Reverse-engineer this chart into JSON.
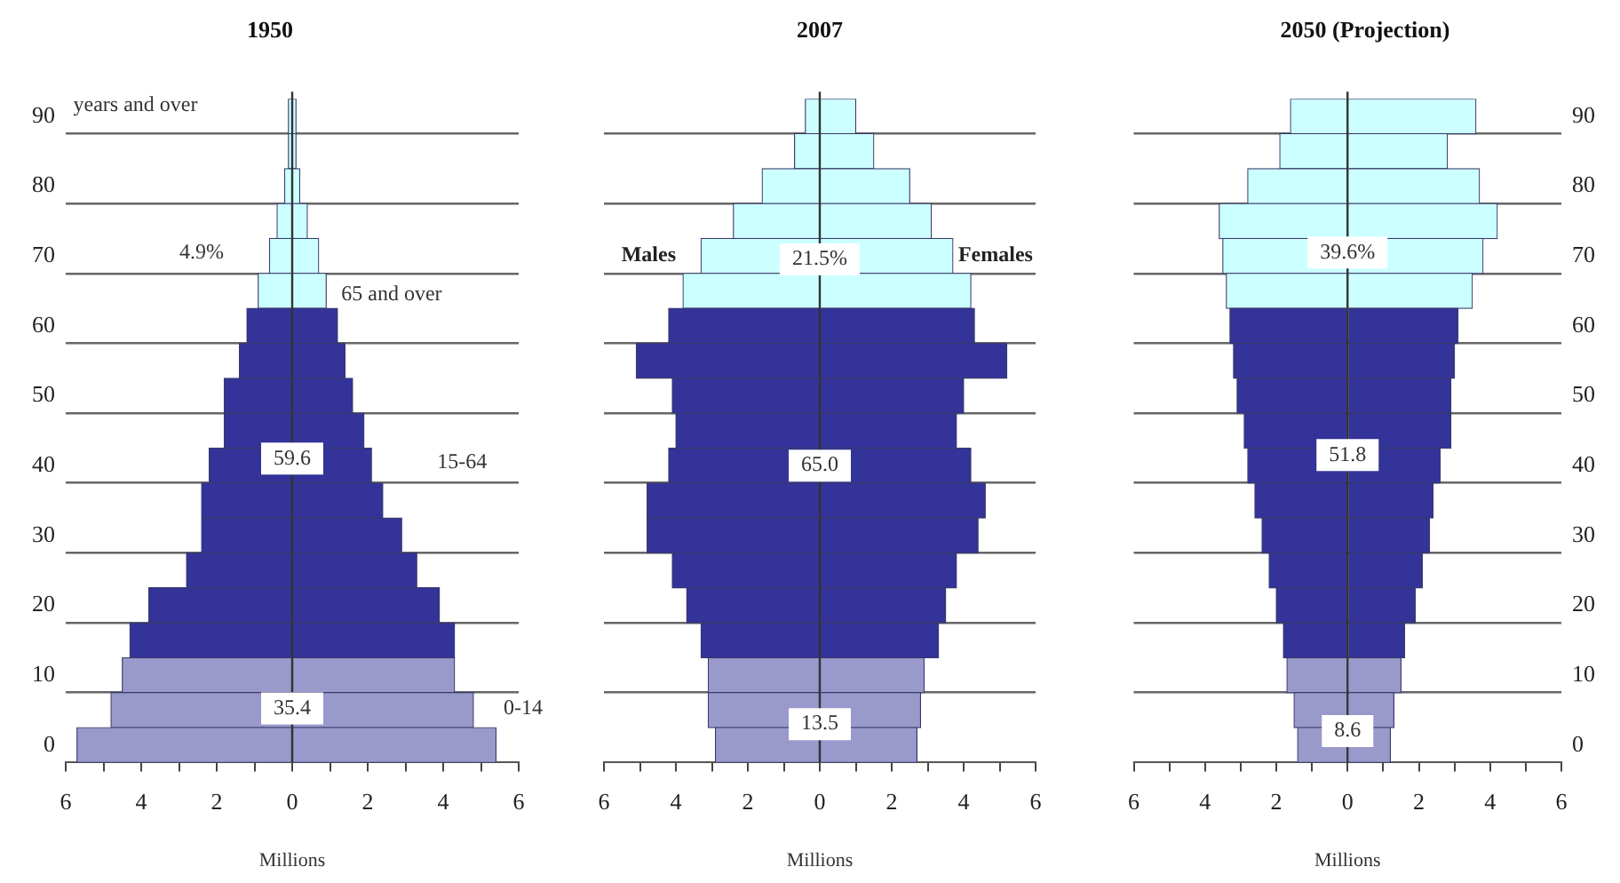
{
  "chart_data": [
    {
      "type": "bar",
      "orientation": "horizontal",
      "stacked": true,
      "title": "1950",
      "xlabel": "Millions",
      "categories": [
        "90",
        null,
        "80",
        null,
        "70",
        null,
        "60",
        null,
        "50",
        null,
        "40",
        null,
        "30",
        null,
        "20",
        null,
        "10",
        null,
        "0"
      ],
      "series": [
        {
          "colors": [
            "#ccffff",
            "#ccffff",
            "#ccffff",
            "#ccffff",
            "#ccffff",
            "#ccffff",
            "#333399",
            "#333399",
            "#333399",
            "#333399",
            "#333399",
            "#333399",
            "#333399",
            "#333399",
            "#333399",
            "#333399",
            "#9999cc",
            "#9999cc",
            "#9999cc"
          ],
          "values": [
            -0.1,
            -0.1,
            -0.2,
            -0.4,
            -0.6,
            -0.9,
            -1.2,
            -1.4,
            -1.8,
            -1.8,
            -2.2,
            -2.4,
            -2.4,
            -2.8,
            -3.8,
            -4.3,
            -4.5,
            -4.8,
            -5.7
          ]
        },
        {
          "colors": [
            "#ccffff",
            "#ccffff",
            "#ccffff",
            "#ccffff",
            "#ccffff",
            "#ccffff",
            "#333399",
            "#333399",
            "#333399",
            "#333399",
            "#333399",
            "#333399",
            "#333399",
            "#333399",
            "#333399",
            "#333399",
            "#9999cc",
            "#9999cc",
            "#9999cc"
          ],
          "values": [
            0.1,
            0.1,
            0.2,
            0.4,
            0.7,
            0.9,
            1.2,
            1.4,
            1.6,
            1.9,
            2.1,
            2.4,
            2.9,
            3.3,
            3.9,
            4.3,
            4.3,
            4.8,
            5.4
          ]
        }
      ],
      "xlim": [
        -6,
        6
      ],
      "xticks": [
        {
          "value": -6,
          "label": "6"
        },
        {
          "value": -5,
          "label": null
        },
        {
          "value": -4,
          "label": "4"
        },
        {
          "value": -3,
          "label": null
        },
        {
          "value": -2,
          "label": "2"
        },
        {
          "value": -1,
          "label": null
        },
        0,
        {
          "value": 1,
          "label": null
        },
        2,
        {
          "value": 3,
          "label": null
        },
        4,
        {
          "value": 5,
          "label": null
        },
        6
      ],
      "grid": "y",
      "ref_lines": [
        {
          "axis": "x",
          "value": 0
        }
      ],
      "annotations": [
        "years and over",
        "4.9%",
        "65 and over",
        "59.6",
        "15-64",
        "35.4",
        "0-14"
      ]
    },
    {
      "type": "bar",
      "orientation": "horizontal",
      "stacked": true,
      "title": "2007",
      "xlabel": "Millions",
      "tick_labels": "x",
      "categories": [
        "90",
        null,
        "80",
        null,
        "70",
        null,
        "60",
        null,
        "50",
        null,
        "40",
        null,
        "30",
        null,
        "20",
        null,
        "10",
        null,
        "0"
      ],
      "series": [
        {
          "name": "Males",
          "colors": [
            "#ccffff",
            "#ccffff",
            "#ccffff",
            "#ccffff",
            "#ccffff",
            "#ccffff",
            "#333399",
            "#333399",
            "#333399",
            "#333399",
            "#333399",
            "#333399",
            "#333399",
            "#333399",
            "#333399",
            "#333399",
            "#9999cc",
            "#9999cc",
            "#9999cc"
          ],
          "values": [
            -0.4,
            -0.7,
            -1.6,
            -2.4,
            -3.3,
            -3.8,
            -4.2,
            -5.1,
            -4.1,
            -4.0,
            -4.2,
            -4.8,
            -4.8,
            -4.1,
            -3.7,
            -3.3,
            -3.1,
            -3.1,
            -2.9
          ]
        },
        {
          "name": "Females",
          "colors": [
            "#ccffff",
            "#ccffff",
            "#ccffff",
            "#ccffff",
            "#ccffff",
            "#ccffff",
            "#333399",
            "#333399",
            "#333399",
            "#333399",
            "#333399",
            "#333399",
            "#333399",
            "#333399",
            "#333399",
            "#333399",
            "#9999cc",
            "#9999cc",
            "#9999cc"
          ],
          "values": [
            1.0,
            1.5,
            2.5,
            3.1,
            3.7,
            4.2,
            4.3,
            5.2,
            4.0,
            3.8,
            4.2,
            4.6,
            4.4,
            3.8,
            3.5,
            3.3,
            2.9,
            2.8,
            2.7
          ]
        }
      ],
      "xlim": [
        -6,
        6
      ],
      "xticks": [
        {
          "value": -6,
          "label": "6"
        },
        {
          "value": -5,
          "label": null
        },
        {
          "value": -4,
          "label": "4"
        },
        {
          "value": -3,
          "label": null
        },
        {
          "value": -2,
          "label": "2"
        },
        {
          "value": -1,
          "label": null
        },
        0,
        {
          "value": 1,
          "label": null
        },
        2,
        {
          "value": 3,
          "label": null
        },
        4,
        {
          "value": 5,
          "label": null
        },
        6
      ],
      "grid": "y",
      "ref_lines": [
        {
          "axis": "x",
          "value": 0
        }
      ],
      "annotations": [
        "21.5%",
        "65.0",
        "13.5"
      ]
    },
    {
      "type": "bar",
      "orientation": "horizontal",
      "stacked": true,
      "title": "2050 (Projection)",
      "xlabel": "Millions",
      "categories": [
        "90",
        null,
        "80",
        null,
        "70",
        null,
        "60",
        null,
        "50",
        null,
        "40",
        null,
        "30",
        null,
        "20",
        null,
        "10",
        null,
        "0"
      ],
      "series": [
        {
          "colors": [
            "#ccffff",
            "#ccffff",
            "#ccffff",
            "#ccffff",
            "#ccffff",
            "#ccffff",
            "#333399",
            "#333399",
            "#333399",
            "#333399",
            "#333399",
            "#333399",
            "#333399",
            "#333399",
            "#333399",
            "#333399",
            "#9999cc",
            "#9999cc",
            "#9999cc"
          ],
          "values": [
            -1.6,
            -1.9,
            -2.8,
            -3.6,
            -3.5,
            -3.4,
            -3.3,
            -3.2,
            -3.1,
            -2.9,
            -2.8,
            -2.6,
            -2.4,
            -2.2,
            -2.0,
            -1.8,
            -1.7,
            -1.5,
            -1.4
          ]
        },
        {
          "colors": [
            "#ccffff",
            "#ccffff",
            "#ccffff",
            "#ccffff",
            "#ccffff",
            "#ccffff",
            "#333399",
            "#333399",
            "#333399",
            "#333399",
            "#333399",
            "#333399",
            "#333399",
            "#333399",
            "#333399",
            "#333399",
            "#9999cc",
            "#9999cc",
            "#9999cc"
          ],
          "values": [
            3.6,
            2.8,
            3.7,
            4.2,
            3.8,
            3.5,
            3.1,
            3.0,
            2.9,
            2.9,
            2.6,
            2.4,
            2.3,
            2.1,
            1.9,
            1.6,
            1.5,
            1.3,
            1.2
          ]
        }
      ],
      "xlim": [
        -6,
        6
      ],
      "xticks": [
        {
          "value": -6,
          "label": "6"
        },
        {
          "value": -5,
          "label": null
        },
        {
          "value": -4,
          "label": "4"
        },
        {
          "value": -3,
          "label": null
        },
        {
          "value": -2,
          "label": "2"
        },
        {
          "value": -1,
          "label": null
        },
        0,
        {
          "value": 1,
          "label": null
        },
        2,
        {
          "value": 3,
          "label": null
        },
        4,
        {
          "value": 5,
          "label": null
        },
        6
      ],
      "grid": "y",
      "ref_lines": [
        {
          "axis": "x",
          "value": 0
        }
      ],
      "annotations": [
        "39.6%",
        "51.8",
        "8.6"
      ]
    }
  ]
}
